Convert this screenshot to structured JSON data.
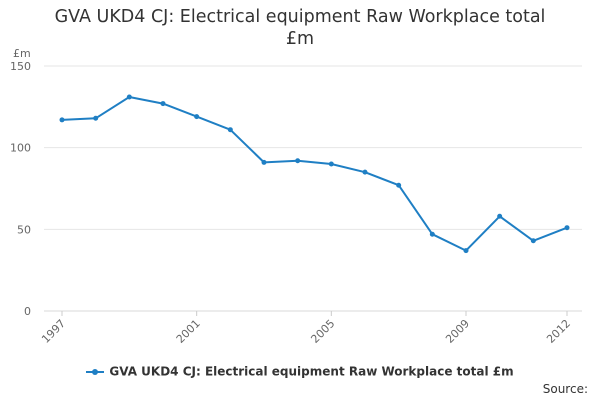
{
  "chart_data": {
    "type": "line",
    "title_lines": [
      "GVA UKD4 CJ: Electrical equipment Raw Workplace total",
      "£m"
    ],
    "ylabel": "£m",
    "ylim": [
      0,
      150
    ],
    "yticks": [
      0,
      50,
      100,
      150
    ],
    "xlim": [
      1997,
      2012
    ],
    "xticks": [
      1997,
      2001,
      2005,
      2009,
      2012
    ],
    "grid": true,
    "legend_position": "bottom",
    "series": [
      {
        "name": "GVA UKD4 CJ: Electrical equipment Raw Workplace total £m",
        "color": "#1f7fc4",
        "x": [
          1997,
          1998,
          1999,
          2000,
          2001,
          2002,
          2003,
          2004,
          2005,
          2006,
          2007,
          2008,
          2009,
          2010,
          2011,
          2012
        ],
        "values": [
          117,
          118,
          131,
          127,
          119,
          111,
          91,
          92,
          90,
          85,
          77,
          47,
          37,
          58,
          43,
          51
        ]
      }
    ]
  },
  "source_label": "Source:"
}
